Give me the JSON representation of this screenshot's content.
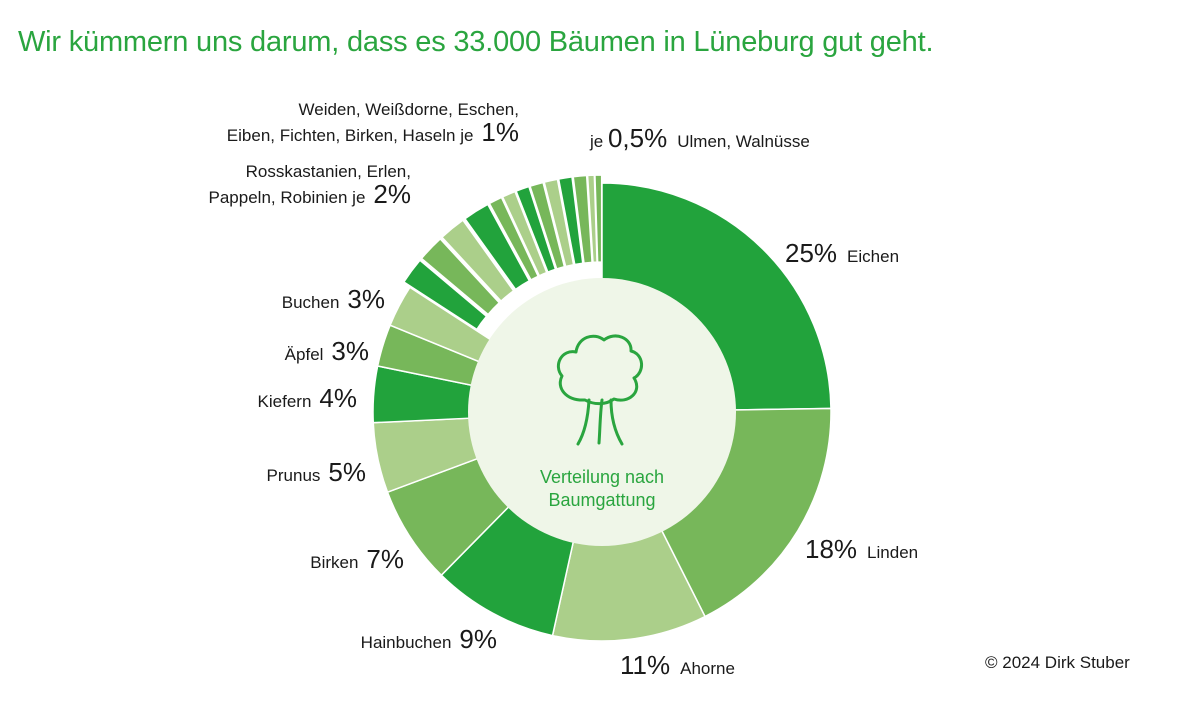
{
  "title": "Wir kümmern uns darum, dass es 33.000 Bäumen in Lüneburg gut geht.",
  "credit": "© 2024 Dirk Stuber",
  "center_label": [
    "Verteilung nach",
    "Baumgattung"
  ],
  "colors": {
    "dark": "#22a33c",
    "mid": "#77b75a",
    "light": "#abcf8a",
    "accent": "#2aa53f",
    "center": "#eff6e8"
  },
  "chart_data": {
    "type": "pie",
    "title": "Verteilung nach Baumgattung",
    "unit": "%",
    "slices": [
      {
        "name": "Eichen",
        "value": 25,
        "color": "dark"
      },
      {
        "name": "Linden",
        "value": 18,
        "color": "mid"
      },
      {
        "name": "Ahorne",
        "value": 11,
        "color": "light"
      },
      {
        "name": "Hainbuchen",
        "value": 9,
        "color": "dark"
      },
      {
        "name": "Birken",
        "value": 7,
        "color": "mid"
      },
      {
        "name": "Prunus",
        "value": 5,
        "color": "light"
      },
      {
        "name": "Kiefern",
        "value": 4,
        "color": "dark"
      },
      {
        "name": "Äpfel",
        "value": 3,
        "color": "mid"
      },
      {
        "name": "Buchen",
        "value": 3,
        "color": "light"
      },
      {
        "name": "Rosskastanien",
        "value": 2,
        "color": "dark"
      },
      {
        "name": "Erlen",
        "value": 2,
        "color": "mid"
      },
      {
        "name": "Pappeln",
        "value": 2,
        "color": "light"
      },
      {
        "name": "Robinien",
        "value": 2,
        "color": "dark"
      },
      {
        "name": "Weiden",
        "value": 1,
        "color": "mid"
      },
      {
        "name": "Weißdorne",
        "value": 1,
        "color": "light"
      },
      {
        "name": "Eschen",
        "value": 1,
        "color": "dark"
      },
      {
        "name": "Eiben",
        "value": 1,
        "color": "mid"
      },
      {
        "name": "Fichten",
        "value": 1,
        "color": "light"
      },
      {
        "name": "Birken",
        "value": 1,
        "color": "dark"
      },
      {
        "name": "Haseln",
        "value": 1,
        "color": "mid"
      },
      {
        "name": "Ulmen",
        "value": 0.5,
        "color": "light"
      },
      {
        "name": "Walnüsse",
        "value": 0.5,
        "color": "mid"
      }
    ],
    "labels": [
      {
        "slices": [
          0
        ],
        "lines": [
          {
            "pct": "25%",
            "name": "Eichen",
            "order": "pct-first"
          }
        ]
      },
      {
        "slices": [
          1
        ],
        "lines": [
          {
            "pct": "18%",
            "name": "Linden",
            "order": "pct-first"
          }
        ]
      },
      {
        "slices": [
          2
        ],
        "lines": [
          {
            "pct": "11%",
            "name": "Ahorne",
            "order": "pct-first"
          }
        ]
      },
      {
        "slices": [
          3
        ],
        "lines": [
          {
            "pct": "9%",
            "name": "Hainbuchen",
            "order": "name-first"
          }
        ]
      },
      {
        "slices": [
          4
        ],
        "lines": [
          {
            "pct": "7%",
            "name": "Birken",
            "order": "name-first"
          }
        ]
      },
      {
        "slices": [
          5
        ],
        "lines": [
          {
            "pct": "5%",
            "name": "Prunus",
            "order": "name-first"
          }
        ]
      },
      {
        "slices": [
          6
        ],
        "lines": [
          {
            "pct": "4%",
            "name": "Kiefern",
            "order": "name-first"
          }
        ]
      },
      {
        "slices": [
          7
        ],
        "lines": [
          {
            "pct": "3%",
            "name": "Äpfel",
            "order": "name-first"
          }
        ]
      },
      {
        "slices": [
          8
        ],
        "lines": [
          {
            "pct": "3%",
            "name": "Buchen",
            "order": "name-first"
          }
        ]
      },
      {
        "slices": [
          9,
          10,
          11,
          12
        ],
        "lines": [
          {
            "name": "Rosskastanien, Erlen,"
          },
          {
            "name": "Pappeln, Robinien je",
            "pct": "2%",
            "order": "name-first"
          }
        ]
      },
      {
        "slices": [
          13,
          14,
          15,
          16,
          17,
          18,
          19
        ],
        "lines": [
          {
            "name": "Weiden, Weißdorne, Eschen,"
          },
          {
            "name": "Eiben, Fichten, Birken, Haseln je",
            "pct": "1%",
            "order": "name-first"
          }
        ]
      },
      {
        "slices": [
          20,
          21
        ],
        "lines": [
          {
            "prefix": "je",
            "pct": "0,5%",
            "name": "Ulmen, Walnüsse",
            "order": "prefix-pct-name"
          }
        ]
      }
    ]
  }
}
